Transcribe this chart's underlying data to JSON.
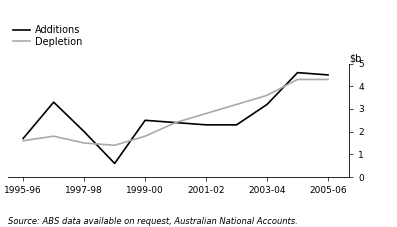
{
  "additions_x": [
    1995.5,
    1996.5,
    1997.5,
    1998.5,
    1999.5,
    2000.5,
    2001.5,
    2002.5,
    2003.5,
    2004.5,
    2005.5
  ],
  "additions_y": [
    1.7,
    3.3,
    2.0,
    0.6,
    2.5,
    2.4,
    2.3,
    2.3,
    3.2,
    4.6,
    4.5
  ],
  "depletion_x": [
    1995.5,
    1996.5,
    1997.5,
    1998.5,
    1999.5,
    2000.5,
    2001.5,
    2002.5,
    2003.5,
    2004.5,
    2005.5
  ],
  "depletion_y": [
    1.6,
    1.8,
    1.5,
    1.4,
    1.8,
    2.4,
    2.8,
    3.2,
    3.6,
    4.3,
    4.3
  ],
  "additions_color": "#000000",
  "depletion_color": "#aaaaaa",
  "source_text": "Source: ABS data available on request, Australian National Accounts.",
  "ylim": [
    0,
    5
  ],
  "yticks": [
    0,
    1,
    2,
    3,
    4,
    5
  ],
  "xtick_labels": [
    "1995-96",
    "1997-98",
    "1999-00",
    "2001-02",
    "2003-04",
    "2005-06"
  ],
  "xtick_positions": [
    1995.5,
    1997.5,
    1999.5,
    2001.5,
    2003.5,
    2005.5
  ],
  "xlim": [
    1995.0,
    2006.2
  ],
  "legend_labels": [
    "Additions",
    "Depletion"
  ],
  "line_width": 1.2,
  "background_color": "#ffffff",
  "source_fontsize": 6.0,
  "legend_fontsize": 7.0,
  "tick_fontsize": 6.5,
  "ylabel_fontsize": 7.0
}
